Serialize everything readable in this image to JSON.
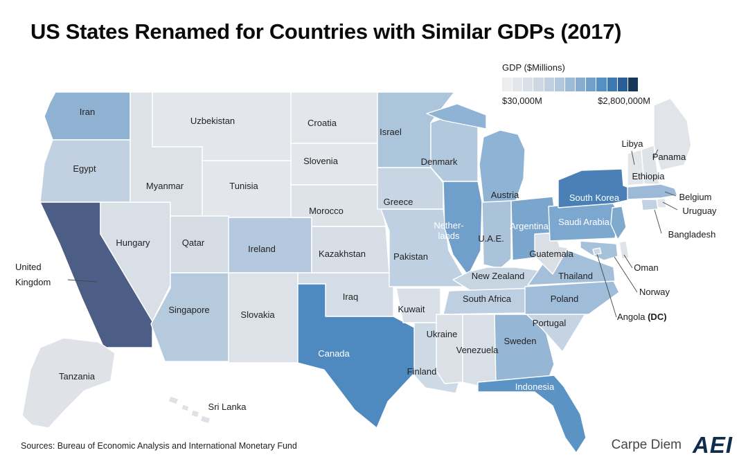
{
  "title": "US States Renamed for Countries with Similar GDPs (2017)",
  "legend": {
    "title": "GDP ($Millions)",
    "min_label": "$30,000M",
    "max_label": "$2,800,000M",
    "swatches": [
      "#ecedef",
      "#e3e6ea",
      "#d9dfe6",
      "#cdd7e2",
      "#c0cfdf",
      "#b0c7dc",
      "#9dbbd7",
      "#88add1",
      "#709fca",
      "#5590c4",
      "#3d7ab2",
      "#2a5e94",
      "#16365c"
    ]
  },
  "footer": {
    "sources": "Sources: Bureau of Economic Analysis and International Monetary Fund",
    "brand": "Carpe Diem",
    "logo": "AEI"
  },
  "chart_data": {
    "type": "choropleth-map",
    "unit": "GDP ($Millions)",
    "range_min_label": "$30,000M",
    "range_max_label": "$2,800,000M",
    "regions": [
      {
        "state": "Washington",
        "label": "Iran",
        "color": "#8fb2d3"
      },
      {
        "state": "Oregon",
        "label": "Egypt",
        "color": "#c2d1e1"
      },
      {
        "state": "California",
        "label": "United Kingdom",
        "label_lines": [
          "United",
          "Kingdom"
        ],
        "color": "#4d5e86"
      },
      {
        "state": "Nevada",
        "label": "Hungary",
        "color": "#d9dfe6"
      },
      {
        "state": "Idaho",
        "label": "Myanmar",
        "color": "#dde2e8"
      },
      {
        "state": "Montana",
        "label": "Uzbekistan",
        "color": "#e3e6ea"
      },
      {
        "state": "Wyoming",
        "label": "Tunisia",
        "color": "#e3e6ea"
      },
      {
        "state": "Utah",
        "label": "Qatar",
        "color": "#d5dce4"
      },
      {
        "state": "Arizona",
        "label": "Singapore",
        "color": "#b6cade"
      },
      {
        "state": "Colorado",
        "label": "Ireland",
        "color": "#b4c9dd"
      },
      {
        "state": "New Mexico",
        "label": "Slovakia",
        "color": "#dde2e8"
      },
      {
        "state": "North Dakota",
        "label": "Croatia",
        "color": "#e3e6ea"
      },
      {
        "state": "South Dakota",
        "label": "Slovenia",
        "color": "#e3e6ea"
      },
      {
        "state": "Nebraska",
        "label": "Morocco",
        "color": "#dee3e8"
      },
      {
        "state": "Kansas",
        "label": "Kazakhstan",
        "color": "#d8dee6"
      },
      {
        "state": "Oklahoma",
        "label": "Iraq",
        "color": "#d4dce5"
      },
      {
        "state": "Texas",
        "label": "Canada",
        "color": "#4e8ac0"
      },
      {
        "state": "Minnesota",
        "label": "Israel",
        "color": "#adc5db"
      },
      {
        "state": "Iowa",
        "label": "Greece",
        "color": "#c8d5e3"
      },
      {
        "state": "Missouri",
        "label": "Pakistan",
        "color": "#bed0e1"
      },
      {
        "state": "Arkansas",
        "label": "Kuwait",
        "color": "#dae0e7"
      },
      {
        "state": "Louisiana",
        "label": "Finland",
        "color": "#cdd9e5"
      },
      {
        "state": "Wisconsin",
        "label": "Denmark",
        "color": "#b2c8dc"
      },
      {
        "state": "Illinois",
        "label": "Netherlands",
        "label_lines": [
          "Nether-",
          "lands"
        ],
        "color": "#6f9fca"
      },
      {
        "state": "Michigan",
        "label": "Austria",
        "color": "#8fb3d4"
      },
      {
        "state": "Indiana",
        "label": "U.A.E.",
        "color": "#aac3d9"
      },
      {
        "state": "Ohio",
        "label": "Argentina",
        "color": "#7aa6ce"
      },
      {
        "state": "Kentucky",
        "label": "New Zealand",
        "color": "#c7d5e3"
      },
      {
        "state": "Tennessee",
        "label": "South Africa",
        "color": "#bdcfe0"
      },
      {
        "state": "Mississippi",
        "label": "Ukraine",
        "color": "#dce1e7"
      },
      {
        "state": "Alabama",
        "label": "Venezuela",
        "color": "#d9dfe6"
      },
      {
        "state": "Georgia",
        "label": "Sweden",
        "color": "#95b7d5"
      },
      {
        "state": "Florida",
        "label": "Indonesia",
        "color": "#5c93c5"
      },
      {
        "state": "South Carolina",
        "label": "Portugal",
        "color": "#c5d3e2"
      },
      {
        "state": "North Carolina",
        "label": "Poland",
        "color": "#9fbcd8"
      },
      {
        "state": "Virginia",
        "label": "Thailand",
        "color": "#a4bfd9"
      },
      {
        "state": "West Virginia",
        "label": "Guatemala",
        "color": "#dadfe6"
      },
      {
        "state": "Pennsylvania",
        "label": "Saudi Arabia",
        "color": "#7ca8cf"
      },
      {
        "state": "New York",
        "label": "South Korea",
        "color": "#4a80b6"
      },
      {
        "state": "Vermont",
        "label": "Libya",
        "color": "#e4e7ea"
      },
      {
        "state": "Maine",
        "label": "Panama",
        "color": "#e1e4e9"
      },
      {
        "state": "New Hampshire",
        "label": "Ethiopia",
        "color": "#dee3e8"
      },
      {
        "state": "Massachusetts",
        "label": "Belgium",
        "color": "#9cbad7"
      },
      {
        "state": "Rhode Island",
        "label": "Uruguay",
        "color": "#e1e4e9"
      },
      {
        "state": "Connecticut",
        "label": "Bangladesh",
        "color": "#c3d2e2"
      },
      {
        "state": "New Jersey",
        "label": "",
        "color": "#7faace"
      },
      {
        "state": "Delaware",
        "label": "Oman",
        "color": "#e0e4e9"
      },
      {
        "state": "Maryland",
        "label": "Norway",
        "color": "#a6c1da"
      },
      {
        "state": "District of Columbia",
        "label": "Angola",
        "label_suffix": "(DC)",
        "color": "#d0d9e3"
      },
      {
        "state": "Alaska",
        "label": "Tanzania",
        "color": "#dfe3e8"
      },
      {
        "state": "Hawaii",
        "label": "Sri Lanka",
        "color": "#dde2e7"
      }
    ]
  }
}
